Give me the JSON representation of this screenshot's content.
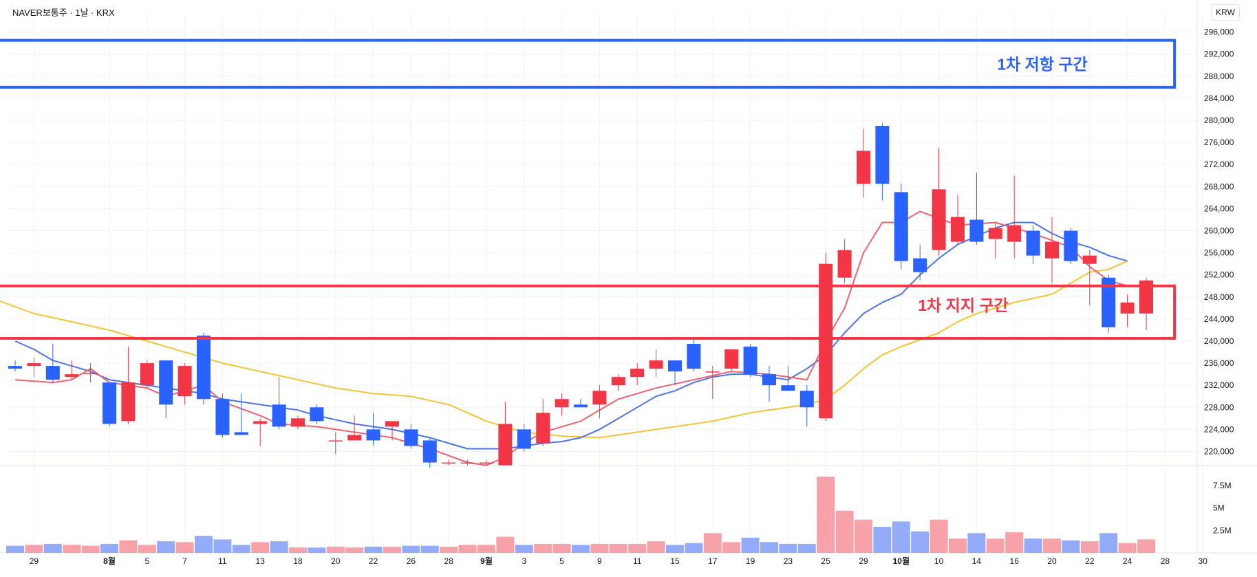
{
  "header": {
    "title": "NAVER보통주 · 1날 · KRX",
    "currency": "KRW"
  },
  "colors": {
    "up": "#f23645",
    "down": "#2962ff",
    "vol_up": "#f7a1a8",
    "vol_down": "#93abf9",
    "ma_short": "#f0616d",
    "ma_mid": "#4a74e8",
    "ma_long": "#f4c430",
    "grid": "#f0f3fa"
  },
  "chart_data": {
    "type": "candlestick",
    "price_axis": {
      "ticks": [
        220000,
        224000,
        228000,
        232000,
        236000,
        240000,
        244000,
        248000,
        252000,
        256000,
        260000,
        264000,
        268000,
        272000,
        276000,
        280000,
        284000,
        288000,
        292000,
        296000
      ],
      "tick_labels": [
        "220,000",
        "224,000",
        "228,000",
        "232,000",
        "236,000",
        "240,000",
        "244,000",
        "248,000",
        "252,000",
        "256,000",
        "260,000",
        "264,000",
        "268,000",
        "272,000",
        "276,000",
        "280,000",
        "284,000",
        "288,000",
        "292,000",
        "296,000"
      ]
    },
    "volume_axis": {
      "ticks": [
        2500000,
        5000000,
        7500000
      ],
      "tick_labels": [
        "2.5M",
        "5M",
        "7.5M"
      ]
    },
    "x_axis": {
      "ticks": [
        {
          "i": 1,
          "label": "29",
          "bold": false
        },
        {
          "i": 5,
          "label": "8월",
          "bold": true
        },
        {
          "i": 7,
          "label": "5",
          "bold": false
        },
        {
          "i": 9,
          "label": "7",
          "bold": false
        },
        {
          "i": 11,
          "label": "11",
          "bold": false
        },
        {
          "i": 13,
          "label": "13",
          "bold": false
        },
        {
          "i": 15,
          "label": "18",
          "bold": false
        },
        {
          "i": 17,
          "label": "20",
          "bold": false
        },
        {
          "i": 19,
          "label": "22",
          "bold": false
        },
        {
          "i": 21,
          "label": "26",
          "bold": false
        },
        {
          "i": 23,
          "label": "28",
          "bold": false
        },
        {
          "i": 25,
          "label": "9월",
          "bold": true
        },
        {
          "i": 27,
          "label": "3",
          "bold": false
        },
        {
          "i": 29,
          "label": "5",
          "bold": false
        },
        {
          "i": 31,
          "label": "9",
          "bold": false
        },
        {
          "i": 33,
          "label": "11",
          "bold": false
        },
        {
          "i": 35,
          "label": "15",
          "bold": false
        },
        {
          "i": 37,
          "label": "17",
          "bold": false
        },
        {
          "i": 39,
          "label": "19",
          "bold": false
        },
        {
          "i": 41,
          "label": "23",
          "bold": false
        },
        {
          "i": 43,
          "label": "25",
          "bold": false
        },
        {
          "i": 45,
          "label": "29",
          "bold": false
        },
        {
          "i": 47,
          "label": "10월",
          "bold": true
        },
        {
          "i": 49,
          "label": "10",
          "bold": false
        },
        {
          "i": 51,
          "label": "14",
          "bold": false
        },
        {
          "i": 53,
          "label": "16",
          "bold": false
        },
        {
          "i": 55,
          "label": "20",
          "bold": false
        },
        {
          "i": 57,
          "label": "22",
          "bold": false
        },
        {
          "i": 59,
          "label": "24",
          "bold": false
        },
        {
          "i": 61,
          "label": "28",
          "bold": false
        },
        {
          "i": 63,
          "label": "30",
          "bold": false
        }
      ]
    },
    "candles": [
      {
        "o": 235500,
        "h": 236500,
        "l": 234500,
        "c": 235000,
        "v": 800000
      },
      {
        "o": 235500,
        "h": 237000,
        "l": 233500,
        "c": 236000,
        "v": 900000
      },
      {
        "o": 235500,
        "h": 239500,
        "l": 232500,
        "c": 233000,
        "v": 1000000
      },
      {
        "o": 233500,
        "h": 236500,
        "l": 233000,
        "c": 234000,
        "v": 900000
      },
      {
        "o": 234000,
        "h": 236000,
        "l": 232500,
        "c": 234200,
        "v": 800000
      },
      {
        "o": 232500,
        "h": 232500,
        "l": 224500,
        "c": 225000,
        "v": 1000000
      },
      {
        "o": 225500,
        "h": 239000,
        "l": 225000,
        "c": 232500,
        "v": 1400000
      },
      {
        "o": 232000,
        "h": 236500,
        "l": 231500,
        "c": 236000,
        "v": 900000
      },
      {
        "o": 236500,
        "h": 236500,
        "l": 226000,
        "c": 228500,
        "v": 1300000
      },
      {
        "o": 230000,
        "h": 236000,
        "l": 228500,
        "c": 235500,
        "v": 1200000
      },
      {
        "o": 241000,
        "h": 241500,
        "l": 228500,
        "c": 229500,
        "v": 1900000
      },
      {
        "o": 229500,
        "h": 230500,
        "l": 222500,
        "c": 223000,
        "v": 1500000
      },
      {
        "o": 223500,
        "h": 230500,
        "l": 223000,
        "c": 223000,
        "v": 900000
      },
      {
        "o": 225000,
        "h": 226000,
        "l": 221000,
        "c": 225500,
        "v": 1200000
      },
      {
        "o": 228500,
        "h": 233500,
        "l": 224000,
        "c": 224500,
        "v": 1300000
      },
      {
        "o": 224500,
        "h": 226500,
        "l": 224000,
        "c": 226000,
        "v": 600000
      },
      {
        "o": 228000,
        "h": 228500,
        "l": 225000,
        "c": 225500,
        "v": 600000
      },
      {
        "o": 222000,
        "h": 223500,
        "l": 219500,
        "c": 222000,
        "v": 700000
      },
      {
        "o": 222000,
        "h": 226500,
        "l": 222000,
        "c": 223000,
        "v": 600000
      },
      {
        "o": 224000,
        "h": 227000,
        "l": 221000,
        "c": 222000,
        "v": 700000
      },
      {
        "o": 224500,
        "h": 225500,
        "l": 222000,
        "c": 225500,
        "v": 700000
      },
      {
        "o": 224000,
        "h": 225000,
        "l": 220500,
        "c": 221000,
        "v": 800000
      },
      {
        "o": 222000,
        "h": 222500,
        "l": 217000,
        "c": 218000,
        "v": 800000
      },
      {
        "o": 218000,
        "h": 218500,
        "l": 217500,
        "c": 218000,
        "v": 700000
      },
      {
        "o": 218000,
        "h": 218500,
        "l": 217500,
        "c": 218000,
        "v": 900000
      },
      {
        "o": 218000,
        "h": 218500,
        "l": 217500,
        "c": 218000,
        "v": 900000
      },
      {
        "o": 217500,
        "h": 229000,
        "l": 217500,
        "c": 225000,
        "v": 1800000
      },
      {
        "o": 224000,
        "h": 225000,
        "l": 220000,
        "c": 220500,
        "v": 900000
      },
      {
        "o": 221500,
        "h": 229500,
        "l": 221000,
        "c": 227000,
        "v": 1000000
      },
      {
        "o": 228000,
        "h": 230500,
        "l": 226500,
        "c": 229500,
        "v": 1000000
      },
      {
        "o": 228500,
        "h": 229500,
        "l": 228000,
        "c": 228000,
        "v": 900000
      },
      {
        "o": 228500,
        "h": 232000,
        "l": 226000,
        "c": 231000,
        "v": 1000000
      },
      {
        "o": 232000,
        "h": 234000,
        "l": 231000,
        "c": 233500,
        "v": 1000000
      },
      {
        "o": 233500,
        "h": 236000,
        "l": 232000,
        "c": 235000,
        "v": 1000000
      },
      {
        "o": 235000,
        "h": 238500,
        "l": 233500,
        "c": 236500,
        "v": 1300000
      },
      {
        "o": 236500,
        "h": 236500,
        "l": 232000,
        "c": 234500,
        "v": 900000
      },
      {
        "o": 239500,
        "h": 240500,
        "l": 234500,
        "c": 235000,
        "v": 1100000
      },
      {
        "o": 234500,
        "h": 235500,
        "l": 229500,
        "c": 234500,
        "v": 2200000
      },
      {
        "o": 235000,
        "h": 238500,
        "l": 234500,
        "c": 238500,
        "v": 1200000
      },
      {
        "o": 239000,
        "h": 239500,
        "l": 233500,
        "c": 234000,
        "v": 1700000
      },
      {
        "o": 234000,
        "h": 235500,
        "l": 229000,
        "c": 232000,
        "v": 1200000
      },
      {
        "o": 232000,
        "h": 235500,
        "l": 231000,
        "c": 231000,
        "v": 1000000
      },
      {
        "o": 231000,
        "h": 232000,
        "l": 224500,
        "c": 228000,
        "v": 1000000
      },
      {
        "o": 226000,
        "h": 256000,
        "l": 225500,
        "c": 254000,
        "v": 8500000
      },
      {
        "o": 251500,
        "h": 258500,
        "l": 250500,
        "c": 256500,
        "v": 4700000
      },
      {
        "o": 268500,
        "h": 278500,
        "l": 266000,
        "c": 274500,
        "v": 3700000
      },
      {
        "o": 279000,
        "h": 279500,
        "l": 265500,
        "c": 268500,
        "v": 2900000
      },
      {
        "o": 267000,
        "h": 268500,
        "l": 253000,
        "c": 254500,
        "v": 3500000
      },
      {
        "o": 255000,
        "h": 257500,
        "l": 251000,
        "c": 252500,
        "v": 2400000
      },
      {
        "o": 256500,
        "h": 275000,
        "l": 255500,
        "c": 267500,
        "v": 3700000
      },
      {
        "o": 258000,
        "h": 266500,
        "l": 257500,
        "c": 262500,
        "v": 1600000
      },
      {
        "o": 262000,
        "h": 270500,
        "l": 257500,
        "c": 258000,
        "v": 2200000
      },
      {
        "o": 258500,
        "h": 261500,
        "l": 255000,
        "c": 260500,
        "v": 1600000
      },
      {
        "o": 258000,
        "h": 270000,
        "l": 255000,
        "c": 261000,
        "v": 2300000
      },
      {
        "o": 260000,
        "h": 261000,
        "l": 254000,
        "c": 255500,
        "v": 1600000
      },
      {
        "o": 255000,
        "h": 262500,
        "l": 250500,
        "c": 258000,
        "v": 1600000
      },
      {
        "o": 260000,
        "h": 260500,
        "l": 254000,
        "c": 254500,
        "v": 1400000
      },
      {
        "o": 254000,
        "h": 256500,
        "l": 246500,
        "c": 255500,
        "v": 1300000
      },
      {
        "o": 251500,
        "h": 252000,
        "l": 241500,
        "c": 242500,
        "v": 2200000
      },
      {
        "o": 245000,
        "h": 248500,
        "l": 242500,
        "c": 247000,
        "v": 1100000
      },
      {
        "o": 245000,
        "h": 251500,
        "l": 242000,
        "c": 251000,
        "v": 1500000
      }
    ],
    "ma_short": [
      [
        0,
        233000
      ],
      [
        2,
        232500
      ],
      [
        3,
        233000
      ],
      [
        4,
        235000
      ],
      [
        5,
        232500
      ],
      [
        7,
        231500
      ],
      [
        8,
        230000
      ],
      [
        10,
        232000
      ],
      [
        11,
        229000
      ],
      [
        13,
        226500
      ],
      [
        14,
        225000
      ],
      [
        16,
        224500
      ],
      [
        18,
        223500
      ],
      [
        20,
        222500
      ],
      [
        22,
        220500
      ],
      [
        24,
        218000
      ],
      [
        25,
        217500
      ],
      [
        26,
        219000
      ],
      [
        27,
        221500
      ],
      [
        28,
        223500
      ],
      [
        30,
        225500
      ],
      [
        32,
        229500
      ],
      [
        34,
        231500
      ],
      [
        36,
        233000
      ],
      [
        38,
        234500
      ],
      [
        40,
        234000
      ],
      [
        42,
        233000
      ],
      [
        43,
        240000
      ],
      [
        44,
        246000
      ],
      [
        45,
        256000
      ],
      [
        46,
        261500
      ],
      [
        47,
        261500
      ],
      [
        48,
        263500
      ],
      [
        50,
        261000
      ],
      [
        52,
        261500
      ],
      [
        54,
        259500
      ],
      [
        56,
        257000
      ],
      [
        57,
        253500
      ],
      [
        58,
        251000
      ],
      [
        59,
        250000
      ]
    ],
    "ma_mid": [
      [
        0,
        240000
      ],
      [
        1,
        238500
      ],
      [
        2,
        236500
      ],
      [
        3,
        235500
      ],
      [
        4,
        234500
      ],
      [
        5,
        233000
      ],
      [
        6,
        232500
      ],
      [
        7,
        232000
      ],
      [
        8,
        231500
      ],
      [
        9,
        231000
      ],
      [
        10,
        230500
      ],
      [
        11,
        229500
      ],
      [
        12,
        229000
      ],
      [
        14,
        228000
      ],
      [
        15,
        227500
      ],
      [
        16,
        226500
      ],
      [
        18,
        225000
      ],
      [
        20,
        224000
      ],
      [
        22,
        222500
      ],
      [
        23,
        221500
      ],
      [
        24,
        220500
      ],
      [
        25,
        220500
      ],
      [
        26,
        220500
      ],
      [
        27,
        221000
      ],
      [
        28,
        221500
      ],
      [
        29,
        221800
      ],
      [
        30,
        222500
      ],
      [
        31,
        224000
      ],
      [
        32,
        226000
      ],
      [
        33,
        228000
      ],
      [
        34,
        230000
      ],
      [
        35,
        231000
      ],
      [
        36,
        232500
      ],
      [
        37,
        233500
      ],
      [
        38,
        234000
      ],
      [
        39,
        234000
      ],
      [
        40,
        233500
      ],
      [
        41,
        233000
      ],
      [
        42,
        235000
      ],
      [
        43,
        237500
      ],
      [
        44,
        241500
      ],
      [
        45,
        245000
      ],
      [
        46,
        247000
      ],
      [
        47,
        248500
      ],
      [
        48,
        252000
      ],
      [
        49,
        255000
      ],
      [
        50,
        257500
      ],
      [
        51,
        259000
      ],
      [
        52,
        260500
      ],
      [
        53,
        261500
      ],
      [
        54,
        261500
      ],
      [
        55,
        259500
      ],
      [
        56,
        258000
      ],
      [
        57,
        257000
      ],
      [
        58,
        255500
      ],
      [
        59,
        254500
      ]
    ],
    "ma_long": [
      [
        -1,
        247500
      ],
      [
        1,
        245000
      ],
      [
        3,
        243500
      ],
      [
        5,
        242000
      ],
      [
        7,
        240000
      ],
      [
        9,
        238000
      ],
      [
        11,
        236000
      ],
      [
        13,
        234500
      ],
      [
        15,
        233000
      ],
      [
        17,
        231500
      ],
      [
        19,
        230500
      ],
      [
        21,
        230000
      ],
      [
        23,
        228500
      ],
      [
        24,
        227000
      ],
      [
        25,
        225500
      ],
      [
        27,
        223500
      ],
      [
        29,
        222800
      ],
      [
        31,
        222500
      ],
      [
        33,
        223500
      ],
      [
        35,
        224500
      ],
      [
        37,
        225500
      ],
      [
        39,
        227000
      ],
      [
        41,
        228000
      ],
      [
        42,
        228500
      ],
      [
        43,
        229500
      ],
      [
        44,
        232000
      ],
      [
        45,
        235000
      ],
      [
        46,
        237500
      ],
      [
        47,
        239000
      ],
      [
        49,
        241500
      ],
      [
        50,
        243500
      ],
      [
        51,
        245000
      ],
      [
        53,
        247000
      ],
      [
        55,
        248500
      ],
      [
        56,
        250500
      ],
      [
        57,
        252500
      ],
      [
        58,
        253000
      ],
      [
        59,
        254500
      ]
    ],
    "zones": [
      {
        "label": "1차 저항 구간",
        "low": 286000,
        "high": 294500,
        "color": "#2962ff",
        "i_end": 61.5
      },
      {
        "label": "1차 지지 구간",
        "low": 240500,
        "high": 250000,
        "color": "#f23645",
        "i_end": 61.5
      }
    ]
  }
}
